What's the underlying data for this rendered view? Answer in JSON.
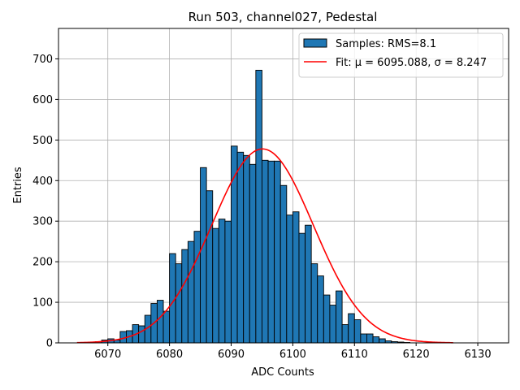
{
  "chart_data": {
    "type": "bar",
    "title": "Run 503, channel027, Pedestal",
    "xlabel": "ADC Counts",
    "ylabel": "Entries",
    "xlim": [
      6062,
      6135
    ],
    "ylim": [
      0,
      775
    ],
    "xticks": [
      6070,
      6080,
      6090,
      6100,
      6110,
      6120,
      6130
    ],
    "yticks": [
      0,
      100,
      200,
      300,
      400,
      500,
      600,
      700
    ],
    "grid": true,
    "bin_width": 1,
    "bins_start": 6067,
    "histogram_values": [
      2,
      3,
      7,
      10,
      7,
      28,
      30,
      45,
      42,
      68,
      97,
      105,
      78,
      220,
      195,
      230,
      250,
      275,
      432,
      375,
      282,
      305,
      300,
      485,
      470,
      462,
      440,
      672,
      450,
      448,
      448,
      388,
      315,
      323,
      270,
      290,
      195,
      165,
      118,
      93,
      128,
      45,
      72,
      57,
      22,
      22,
      15,
      10,
      5,
      3,
      2,
      1
    ],
    "histogram_color": "#1f77b4",
    "fit": {
      "mu": 6095.088,
      "sigma": 8.247,
      "amplitude": 478,
      "x_range": [
        6065,
        6126
      ],
      "color": "#ff0000"
    },
    "legend": {
      "placement": "top-right",
      "entries": [
        {
          "label": "Samples: RMS=8.1",
          "kind": "patch",
          "color": "#1f77b4"
        },
        {
          "label": "Fit: μ = 6095.088, σ = 8.247",
          "kind": "line",
          "color": "#ff0000"
        }
      ]
    }
  }
}
